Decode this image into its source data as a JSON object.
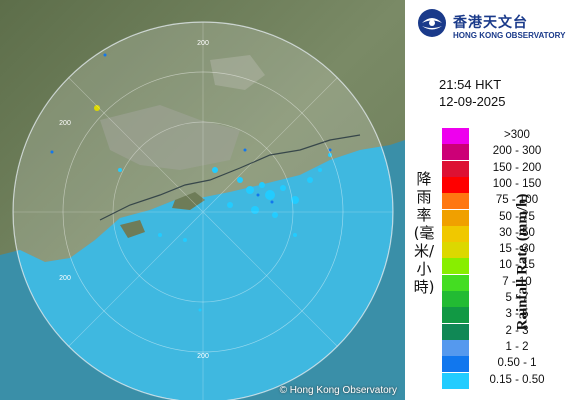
{
  "header": {
    "org_name_zh": "香港天文台",
    "org_name_en": "HONG KONG OBSERVATORY",
    "logo_icon": "hko-logo-icon"
  },
  "timestamp": {
    "time": "21:54 HKT",
    "date": "12-09-2025"
  },
  "legend": {
    "title_zh": "降雨率(毫米/小時)",
    "title_en": "Rainfall Rate (mm/h)",
    "items": [
      {
        "label": ">300",
        "color": "#ee00ee"
      },
      {
        "label": "200 - 300",
        "color": "#cc0077"
      },
      {
        "label": "150 - 200",
        "color": "#dd1133"
      },
      {
        "label": "100 - 150",
        "color": "#ff0000"
      },
      {
        "label": "75 - 100",
        "color": "#ff7711"
      },
      {
        "label": "50 - 75",
        "color": "#f0a000"
      },
      {
        "label": "30 - 50",
        "color": "#f0c800"
      },
      {
        "label": "15 - 30",
        "color": "#dcd800"
      },
      {
        "label": "10 - 15",
        "color": "#88ee00"
      },
      {
        "label": "7 - 10",
        "color": "#44dd22"
      },
      {
        "label": "5 - 7",
        "color": "#22bb33"
      },
      {
        "label": "3 - 5",
        "color": "#119944"
      },
      {
        "label": "2 - 3",
        "color": "#108855"
      },
      {
        "label": "1 - 2",
        "color": "#5599ee"
      },
      {
        "label": "0.50 - 1",
        "color": "#1177ee"
      },
      {
        "label": "0.15 - 0.50",
        "color": "#22ccff"
      }
    ]
  },
  "map": {
    "range_labels": [
      "200",
      "200",
      "200",
      "200"
    ],
    "copyright": "© Hong Kong Observatory",
    "radar_color": "#3fb8e0",
    "land_color": "#6e7c58"
  }
}
